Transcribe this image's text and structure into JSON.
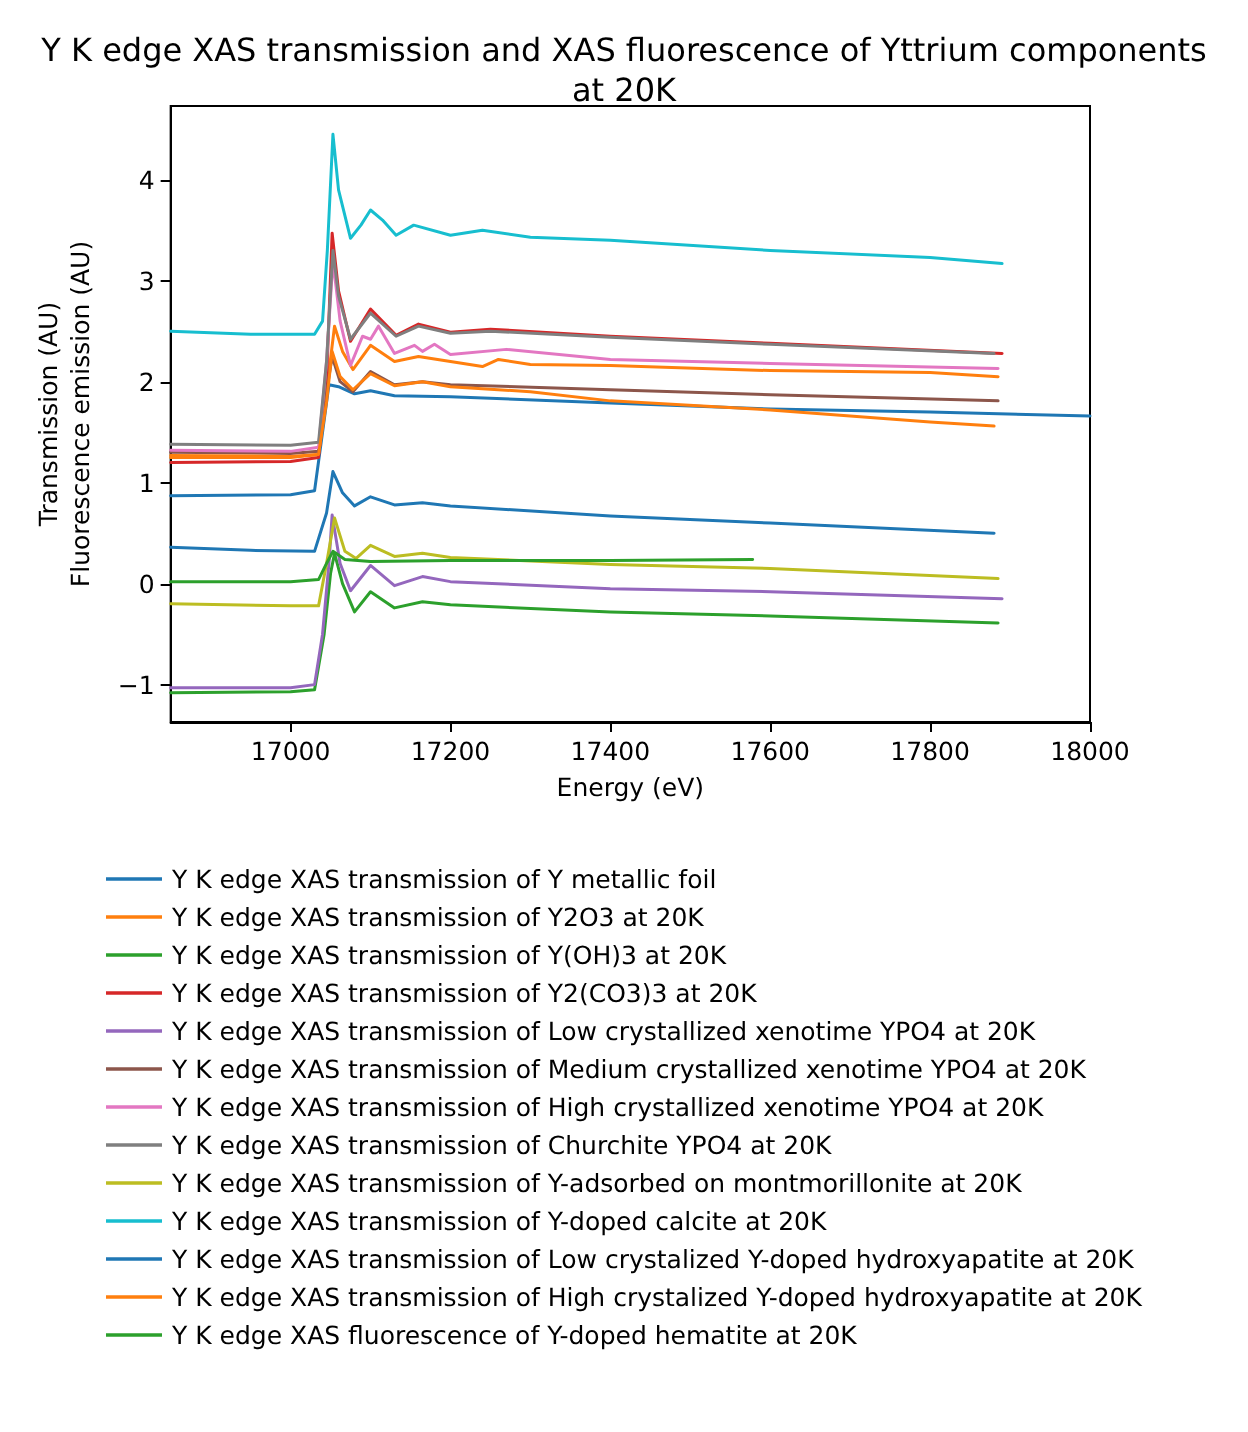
{
  "chart_data": {
    "type": "line",
    "title": "Y K edge XAS transmission and XAS fluorescence of Yttrium components\nat 20K",
    "xlabel": "Energy (eV)",
    "ylabel": "Transmission (AU)\nFluorescence emission (AU)",
    "xlim": [
      16850,
      18000
    ],
    "xticks": [
      17000,
      17200,
      17400,
      17600,
      17800,
      18000
    ],
    "ylim": [
      -1.37,
      4.73
    ],
    "yticks": [
      -1,
      0,
      1,
      2,
      3,
      4
    ],
    "grid": false,
    "legend": "bottom",
    "series": [
      {
        "name": "Y K edge XAS transmission of Y metallic foil",
        "color": "#1f77b4",
        "x": [
          16850,
          17000,
          17030,
          17040,
          17048,
          17060,
          17080,
          17100,
          17130,
          17200,
          17400,
          17600,
          17800,
          18000
        ],
        "values": [
          0.87,
          0.88,
          0.92,
          1.5,
          1.97,
          1.95,
          1.88,
          1.91,
          1.86,
          1.85,
          1.79,
          1.73,
          1.7,
          1.66
        ]
      },
      {
        "name": "Y K edge XAS transmission of Y2O3 at 20K",
        "color": "#ff7f0e",
        "x": [
          16850,
          17000,
          17035,
          17045,
          17055,
          17065,
          17078,
          17100,
          17130,
          17160,
          17200,
          17240,
          17260,
          17300,
          17400,
          17600,
          17800,
          17885
        ],
        "values": [
          1.25,
          1.25,
          1.28,
          1.9,
          2.55,
          2.3,
          2.12,
          2.36,
          2.2,
          2.25,
          2.2,
          2.15,
          2.22,
          2.17,
          2.16,
          2.11,
          2.09,
          2.05
        ]
      },
      {
        "name": "Y K edge XAS transmission of Y(OH)3 at 20K",
        "color": "#2ca02c",
        "x": [
          16850,
          17000,
          17030,
          17042,
          17050,
          17055,
          17065,
          17080,
          17100,
          17130,
          17165,
          17200,
          17400,
          17600,
          17885
        ],
        "values": [
          -1.08,
          -1.07,
          -1.05,
          -0.5,
          0.1,
          0.3,
          0.0,
          -0.28,
          -0.08,
          -0.24,
          -0.18,
          -0.21,
          -0.28,
          -0.32,
          -0.39
        ]
      },
      {
        "name": "Y K edge XAS transmission of Y2(CO3)3 at 20K",
        "color": "#d62728",
        "x": [
          16850,
          17000,
          17035,
          17045,
          17052,
          17060,
          17075,
          17100,
          17132,
          17160,
          17200,
          17250,
          17400,
          17600,
          17890
        ],
        "values": [
          1.2,
          1.21,
          1.25,
          2.0,
          3.47,
          2.9,
          2.4,
          2.72,
          2.46,
          2.57,
          2.49,
          2.52,
          2.45,
          2.38,
          2.28
        ]
      },
      {
        "name": "Y K edge XAS transmission of Low crystallized xenotime YPO4 at 20K",
        "color": "#9467bd",
        "x": [
          16850,
          17000,
          17030,
          17040,
          17048,
          17052,
          17062,
          17075,
          17100,
          17130,
          17165,
          17200,
          17400,
          17600,
          17890
        ],
        "values": [
          -1.03,
          -1.03,
          -1.0,
          -0.5,
          0.2,
          0.68,
          0.2,
          -0.07,
          0.18,
          -0.02,
          0.07,
          0.02,
          -0.05,
          -0.08,
          -0.15
        ]
      },
      {
        "name": "Y K edge XAS transmission of Medium crystallized xenotime YPO4 at 20K",
        "color": "#8c564b",
        "x": [
          16850,
          17000,
          17035,
          17045,
          17052,
          17062,
          17078,
          17100,
          17130,
          17165,
          17200,
          17400,
          17600,
          17885
        ],
        "values": [
          1.3,
          1.29,
          1.31,
          1.9,
          2.25,
          2.0,
          1.9,
          2.1,
          1.97,
          2.0,
          1.97,
          1.92,
          1.87,
          1.81
        ]
      },
      {
        "name": "Y K edge XAS transmission of High crystallized xenotime YPO4 at 20K",
        "color": "#e377c2",
        "x": [
          16850,
          17000,
          17035,
          17045,
          17053,
          17062,
          17075,
          17090,
          17100,
          17110,
          17130,
          17155,
          17165,
          17180,
          17200,
          17270,
          17400,
          17600,
          17885
        ],
        "values": [
          1.32,
          1.31,
          1.35,
          2.2,
          3.2,
          2.6,
          2.16,
          2.45,
          2.42,
          2.55,
          2.28,
          2.36,
          2.3,
          2.37,
          2.27,
          2.32,
          2.22,
          2.18,
          2.13
        ]
      },
      {
        "name": "Y K edge XAS transmission of Churchite YPO4 at 20K",
        "color": "#7f7f7f",
        "x": [
          16850,
          17000,
          17035,
          17045,
          17053,
          17060,
          17075,
          17100,
          17132,
          17160,
          17200,
          17250,
          17400,
          17600,
          17880
        ],
        "values": [
          1.38,
          1.37,
          1.4,
          2.2,
          3.3,
          2.85,
          2.42,
          2.68,
          2.45,
          2.55,
          2.48,
          2.5,
          2.44,
          2.37,
          2.28
        ]
      },
      {
        "name": "Y K edge XAS transmission of Y-adsorbed on montmorillonite at 20K",
        "color": "#bcbd22",
        "x": [
          16850,
          17000,
          17035,
          17045,
          17055,
          17068,
          17082,
          17100,
          17130,
          17165,
          17200,
          17400,
          17600,
          17885
        ],
        "values": [
          -0.2,
          -0.22,
          -0.22,
          0.2,
          0.65,
          0.32,
          0.25,
          0.38,
          0.27,
          0.3,
          0.26,
          0.19,
          0.15,
          0.05
        ]
      },
      {
        "name": "Y K edge XAS transmission of Y-doped calcite at 20K",
        "color": "#17becf",
        "x": [
          16850,
          16950,
          17030,
          17040,
          17046,
          17053,
          17060,
          17075,
          17088,
          17100,
          17115,
          17132,
          17154,
          17200,
          17240,
          17300,
          17400,
          17600,
          17800,
          17890
        ],
        "values": [
          2.5,
          2.47,
          2.47,
          2.6,
          3.3,
          4.45,
          3.9,
          3.42,
          3.55,
          3.7,
          3.6,
          3.45,
          3.55,
          3.45,
          3.5,
          3.43,
          3.4,
          3.3,
          3.23,
          3.17
        ]
      },
      {
        "name": "Y K edge XAS transmission of Low crystalized Y-doped hydroxyapatite at 20K",
        "color": "#1f77b4",
        "x": [
          16850,
          16950,
          17030,
          17045,
          17053,
          17065,
          17080,
          17100,
          17130,
          17165,
          17200,
          17400,
          17600,
          17880
        ],
        "values": [
          0.36,
          0.33,
          0.32,
          0.7,
          1.11,
          0.9,
          0.77,
          0.86,
          0.78,
          0.8,
          0.77,
          0.67,
          0.6,
          0.5
        ]
      },
      {
        "name": "Y K edge XAS transmission of High crystalized Y-doped hydroxyapatite at 20K",
        "color": "#ff7f0e",
        "x": [
          16850,
          17000,
          17035,
          17045,
          17052,
          17062,
          17078,
          17100,
          17130,
          17165,
          17200,
          17300,
          17400,
          17600,
          17800,
          17880
        ],
        "values": [
          1.27,
          1.26,
          1.28,
          1.8,
          2.3,
          2.05,
          1.92,
          2.08,
          1.96,
          2.0,
          1.95,
          1.9,
          1.81,
          1.72,
          1.6,
          1.56
        ]
      },
      {
        "name": "Y K edge XAS fluorescence of Y-doped hematite at 20K",
        "color": "#2ca02c",
        "x": [
          16850,
          17000,
          17035,
          17045,
          17053,
          17068,
          17100,
          17200,
          17400,
          17578
        ],
        "values": [
          0.02,
          0.02,
          0.04,
          0.2,
          0.32,
          0.24,
          0.22,
          0.23,
          0.23,
          0.24
        ]
      }
    ]
  }
}
